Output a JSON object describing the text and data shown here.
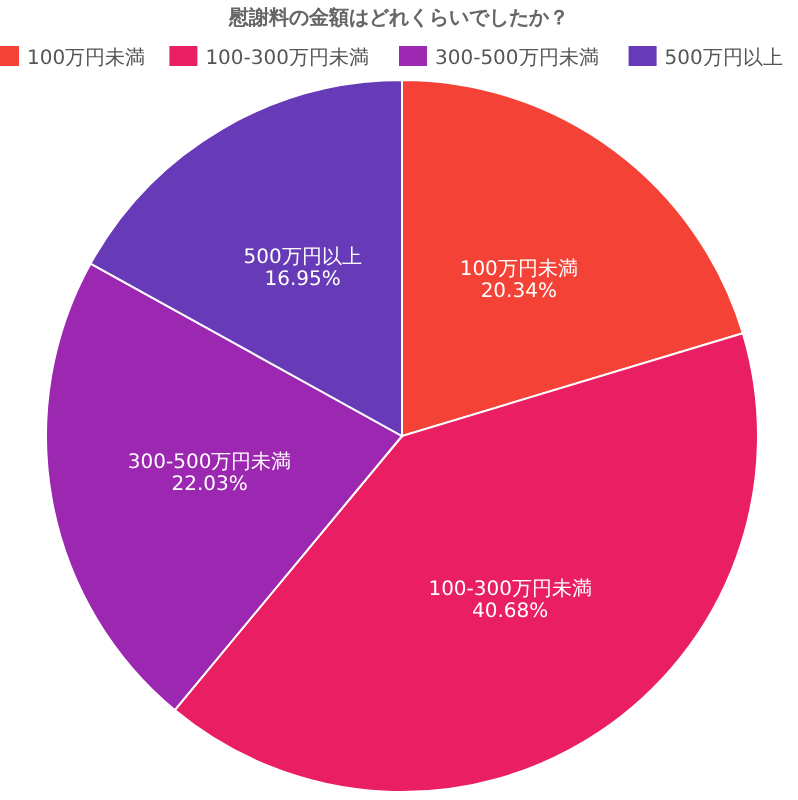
{
  "chart_data": {
    "type": "pie",
    "title": "慰謝料の金額はどれくらいでしたか？",
    "categories": [
      "100万円未満",
      "100-300万円未満",
      "300-500万円未満",
      "500万円以上"
    ],
    "values": [
      20.34,
      40.68,
      22.03,
      16.95
    ],
    "colors": [
      "#f44336",
      "#e91e63",
      "#9c27b0",
      "#673ab7"
    ],
    "value_labels": [
      "20.34%",
      "40.68%",
      "22.03%",
      "16.95%"
    ],
    "legend": "top"
  }
}
